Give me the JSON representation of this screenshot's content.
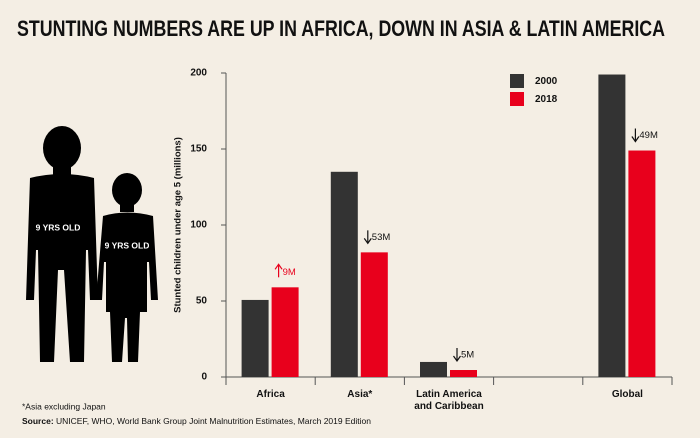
{
  "chart_data": {
    "type": "bar",
    "title": "STUNTING NUMBERS ARE UP IN AFRICA, DOWN IN ASIA & LATIN AMERICA",
    "y_label": "Stunted children under age 5 (millions)",
    "categories": [
      "Africa",
      "Asia*",
      "Latin America and Caribbean",
      null,
      "Global"
    ],
    "series": [
      {
        "name": "2000",
        "color": "#333333",
        "values": [
          50.7,
          135,
          9.9,
          null,
          199
        ]
      },
      {
        "name": "2018",
        "color": "#e8001c",
        "values": [
          59,
          82,
          4.6,
          null,
          149
        ]
      }
    ],
    "annotations": [
      "9M",
      "53M",
      "5M",
      null,
      "49M"
    ],
    "ylim": [
      0,
      200
    ],
    "yticks": [
      0,
      50,
      100,
      150,
      200
    ],
    "grid": false,
    "legend": "top-right",
    "figure_labels": [
      "9 YRS OLD",
      "9 YRS OLD"
    ],
    "footnote": "*Asia excluding Japan",
    "source_label": "Source:",
    "source": "UNICEF, WHO, World Bank Group Joint Malnutrition Estimates, March 2019 Edition"
  }
}
